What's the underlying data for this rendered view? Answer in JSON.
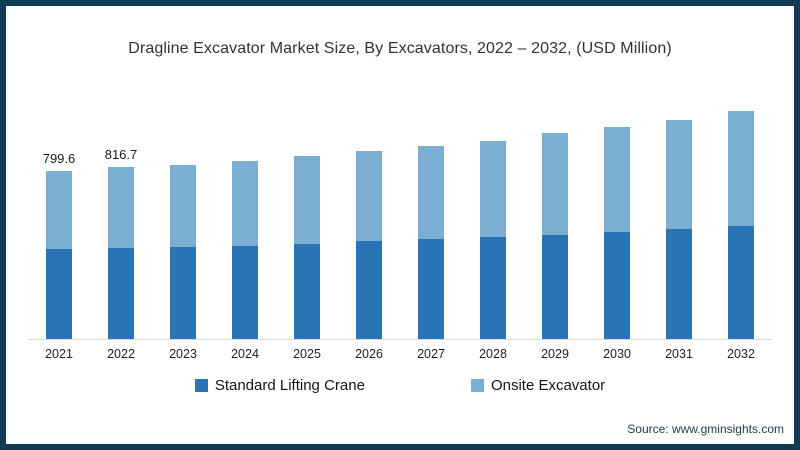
{
  "title": "Dragline Excavator Market Size, By Excavators, 2022 – 2032, (USD Million)",
  "source": "Source: www.gminsights.com",
  "frame": {
    "border_color": "#113b54",
    "background": "#ffffff"
  },
  "legend": [
    {
      "label": "Standard Lifting Crane",
      "color": "#2a73b5"
    },
    {
      "label": "Onsite Excavator",
      "color": "#7aaed3"
    }
  ],
  "chart_data": {
    "type": "bar",
    "stacked": true,
    "title": "Dragline Excavator Market Size, By Excavators, 2022 – 2032, (USD Million)",
    "ylabel": "USD Million",
    "ylim": [
      0,
      1150
    ],
    "grid": false,
    "legend_position": "bottom",
    "categories": [
      "2021",
      "2022",
      "2023",
      "2024",
      "2025",
      "2026",
      "2027",
      "2028",
      "2029",
      "2030",
      "2031",
      "2032"
    ],
    "series": [
      {
        "name": "Standard Lifting Crane",
        "color": "#2a73b5",
        "values": [
          428.0,
          433.0,
          438,
          444,
          454,
          465,
          476,
          484,
          493,
          507,
          523,
          539
        ]
      },
      {
        "name": "Onsite Excavator",
        "color": "#7aaed3",
        "values": [
          371.6,
          383.7,
          391,
          404,
          415,
          427,
          440,
          459,
          486,
          501,
          516,
          543
        ]
      }
    ],
    "totals": [
      799.6,
      816.7,
      829,
      848,
      869,
      892,
      916,
      943,
      979,
      1008,
      1039,
      1082
    ],
    "total_labels": [
      "799.6",
      "816.7",
      "",
      "",
      "",
      "",
      "",
      "",
      "",
      "",
      "",
      ""
    ]
  }
}
